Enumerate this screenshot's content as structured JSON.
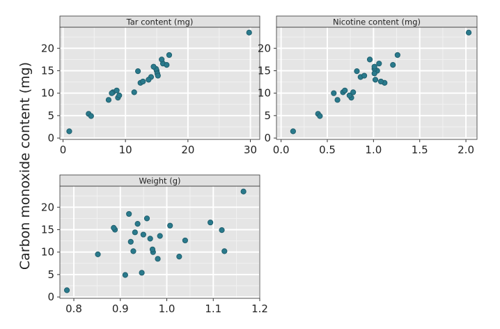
{
  "chart_data": {
    "type": "scatter",
    "ylabel": "Carbon monoxide content (mg)",
    "point_color": "#2a7a8c",
    "point_stroke": "#1f5f6e",
    "ylim": [
      -0.3,
      24.7
    ],
    "yticks": [
      0,
      5,
      10,
      15,
      20
    ],
    "y": [
      13.6,
      16.6,
      23.5,
      10.2,
      5.4,
      15.0,
      9.0,
      12.3,
      16.3,
      15.4,
      13.0,
      14.4,
      10.0,
      10.2,
      9.5,
      1.5,
      18.5,
      12.6,
      17.5,
      4.9,
      15.9,
      8.5,
      10.6,
      13.9,
      14.9
    ],
    "panels": [
      {
        "title": "Tar content (mg)",
        "xlim": [
          -0.5,
          31.5
        ],
        "xticks": [
          0,
          10,
          20,
          30
        ],
        "tick_labels": [
          "0",
          "10",
          "20",
          "30"
        ],
        "x": [
          14.1,
          16.0,
          29.8,
          8.0,
          4.1,
          15.0,
          8.8,
          12.4,
          16.6,
          14.9,
          13.7,
          15.1,
          7.8,
          11.4,
          9.0,
          1.0,
          17.0,
          12.8,
          15.8,
          4.5,
          14.5,
          7.3,
          8.6,
          15.2,
          12.0
        ]
      },
      {
        "title": "Nicotine content (mg)",
        "xlim": [
          -0.05,
          2.12
        ],
        "xticks": [
          0.0,
          0.5,
          1.0,
          1.5,
          2.0
        ],
        "tick_labels": [
          "0.0",
          "0.5",
          "1.0",
          "1.5",
          "2.0"
        ],
        "x": [
          0.86,
          1.06,
          2.03,
          0.67,
          0.4,
          1.04,
          0.76,
          1.12,
          1.21,
          1.01,
          1.02,
          1.01,
          0.57,
          0.78,
          0.74,
          0.13,
          1.26,
          1.08,
          0.96,
          0.42,
          1.01,
          0.61,
          0.69,
          0.9,
          0.82
        ]
      },
      {
        "title": "Weight (g)",
        "xlim": [
          0.77,
          1.2
        ],
        "xticks": [
          0.8,
          0.9,
          1.0,
          1.1,
          1.2
        ],
        "tick_labels": [
          "0.8",
          "0.9",
          "1.0",
          "1.1",
          "1.2"
        ],
        "x": [
          0.9853,
          1.0938,
          1.165,
          0.928,
          0.9462,
          0.8885,
          1.0267,
          0.9225,
          0.9372,
          0.8858,
          0.9643,
          0.9316,
          0.9705,
          1.124,
          0.8517,
          0.7851,
          0.9186,
          1.0395,
          0.9573,
          0.9106,
          1.007,
          0.9806,
          0.9693,
          0.9496,
          1.1184
        ]
      }
    ]
  }
}
